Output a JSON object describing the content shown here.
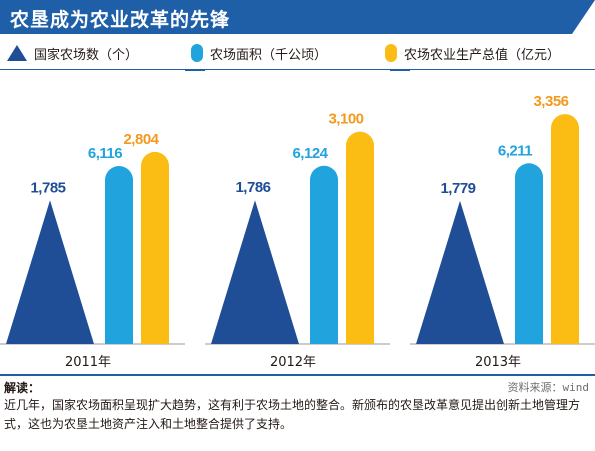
{
  "banner": {
    "title": "农垦成为农业改革的先锋"
  },
  "colors": {
    "banner": "#1f5fa8",
    "rule": "#1f5fa8",
    "count": "#1f4e96",
    "area": "#21a3de",
    "value": "#fbbd14",
    "value_label": "#f39a1e"
  },
  "legend": [
    {
      "label": "国家农场数（个）",
      "icon": "triangle-icon",
      "color": "#1f4e96"
    },
    {
      "label": "农场面积（千公顷）",
      "icon": "rounded-bar-icon",
      "color": "#21a3de"
    },
    {
      "label": "农场农业生产总值（亿元）",
      "icon": "rounded-bar-icon",
      "color": "#fbbd14"
    }
  ],
  "chart_data": {
    "type": "bar",
    "categories": [
      "2011年",
      "2012年",
      "2013年"
    ],
    "series": [
      {
        "name": "国家农场数（个）",
        "values": [
          1785,
          1786,
          1779
        ],
        "labels": [
          "1,785",
          "1,786",
          "1,779"
        ],
        "mark": "triangle",
        "color": "#1f4e96"
      },
      {
        "name": "农场面积（千公顷）",
        "values": [
          6116,
          6124,
          6211
        ],
        "labels": [
          "6,116",
          "6,124",
          "6,211"
        ],
        "mark": "rounded-bar",
        "color": "#21a3de"
      },
      {
        "name": "农场农业生产总值（亿元）",
        "values": [
          2804,
          3100,
          3356
        ],
        "labels": [
          "2,804",
          "3,100",
          "3,356"
        ],
        "mark": "rounded-bar",
        "color": "#fbbd14"
      }
    ],
    "title": "农垦成为农业改革的先锋",
    "legend_position": "top",
    "grid": false,
    "axes_visible": false
  },
  "notes": {
    "title": "解读：",
    "source": "资料来源：wind",
    "body": "近几年，国家农场面积呈现扩大趋势，这有利于农场土地的整合。新颁布的农垦改革意见提出创新土地管理方式，这也为农垦土地资产注入和土地整合提供了支持。"
  }
}
